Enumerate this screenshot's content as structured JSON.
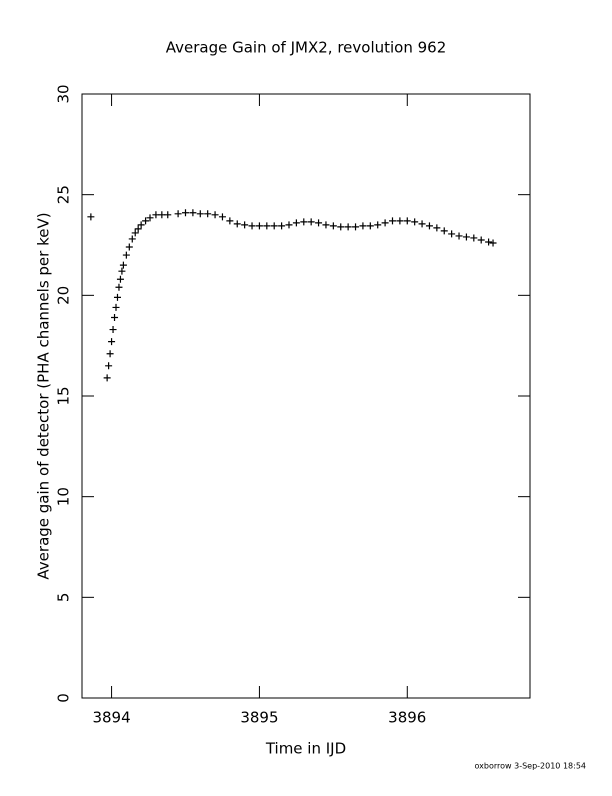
{
  "chart_data": {
    "type": "scatter",
    "title": "Average Gain of JMX2, revolution 962",
    "xlabel": "Time in IJD",
    "ylabel": "Average gain of detector (PHA channels per keV)",
    "footer": "oxborrow  3-Sep-2010 18:54",
    "marker": "plus",
    "color": "#000000",
    "xlim": [
      3893.8,
      3896.83
    ],
    "xticks": [
      3894,
      3895,
      3896
    ],
    "ylim": [
      0,
      30
    ],
    "yticks": [
      0,
      5,
      10,
      15,
      20,
      25,
      30
    ],
    "x": [
      3893.86,
      3893.97,
      3893.98,
      3893.99,
      3894.0,
      3894.01,
      3894.02,
      3894.03,
      3894.04,
      3894.05,
      3894.06,
      3894.07,
      3894.08,
      3894.1,
      3894.12,
      3894.14,
      3894.16,
      3894.18,
      3894.2,
      3894.23,
      3894.26,
      3894.3,
      3894.34,
      3894.38,
      3894.45,
      3894.5,
      3894.55,
      3894.6,
      3894.65,
      3894.7,
      3894.75,
      3894.8,
      3894.85,
      3894.9,
      3894.95,
      3895.0,
      3895.05,
      3895.1,
      3895.15,
      3895.2,
      3895.25,
      3895.3,
      3895.35,
      3895.4,
      3895.45,
      3895.5,
      3895.55,
      3895.6,
      3895.65,
      3895.7,
      3895.75,
      3895.8,
      3895.85,
      3895.9,
      3895.95,
      3896.0,
      3896.05,
      3896.1,
      3896.15,
      3896.2,
      3896.25,
      3896.3,
      3896.35,
      3896.4,
      3896.45,
      3896.5,
      3896.55,
      3896.58
    ],
    "values": [
      23.9,
      15.9,
      16.5,
      17.1,
      17.7,
      18.3,
      18.9,
      19.4,
      19.9,
      20.4,
      20.8,
      21.2,
      21.5,
      22.0,
      22.4,
      22.8,
      23.1,
      23.3,
      23.5,
      23.7,
      23.85,
      24.0,
      24.0,
      24.0,
      24.05,
      24.1,
      24.1,
      24.05,
      24.05,
      24.0,
      23.9,
      23.7,
      23.55,
      23.5,
      23.45,
      23.45,
      23.45,
      23.45,
      23.45,
      23.5,
      23.6,
      23.65,
      23.65,
      23.6,
      23.5,
      23.45,
      23.4,
      23.4,
      23.4,
      23.45,
      23.45,
      23.5,
      23.6,
      23.7,
      23.7,
      23.7,
      23.65,
      23.55,
      23.45,
      23.35,
      23.2,
      23.05,
      22.95,
      22.9,
      22.85,
      22.75,
      22.65,
      22.6
    ]
  }
}
